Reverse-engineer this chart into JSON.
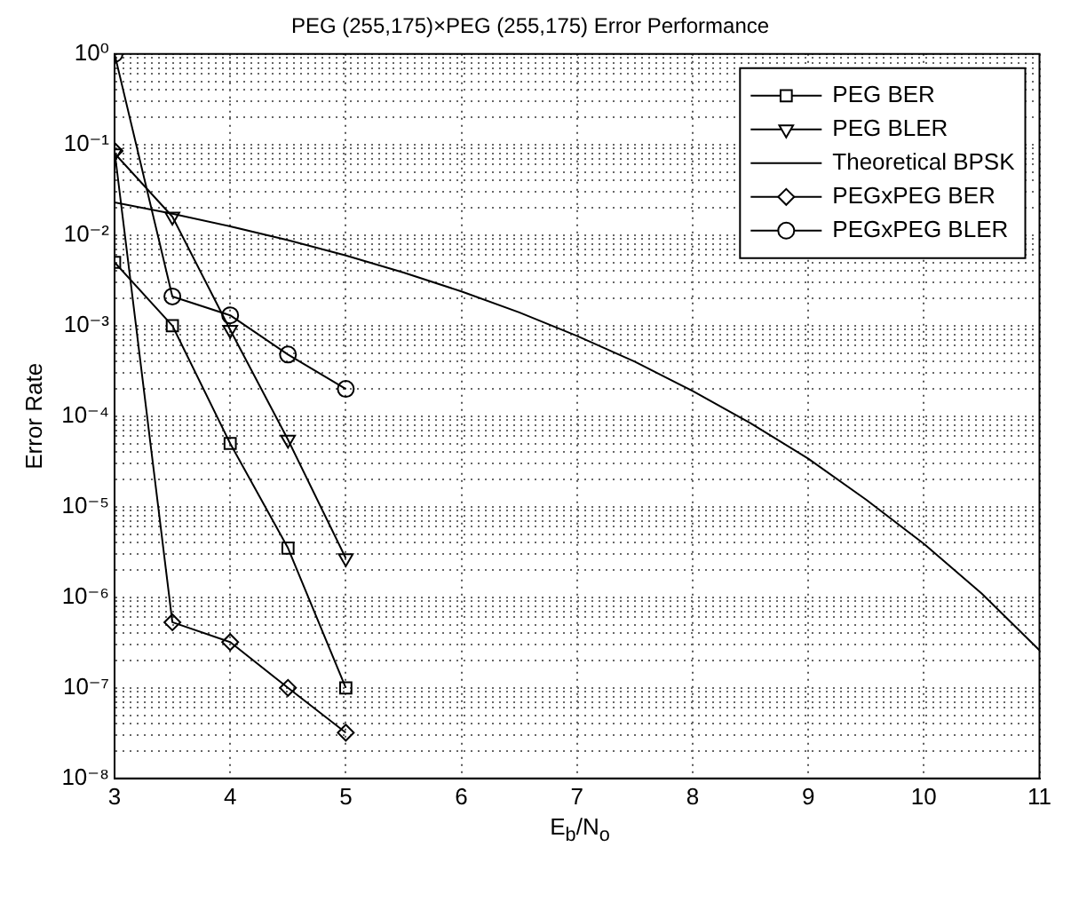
{
  "chart_data": {
    "type": "line",
    "title": "PEG (255,175)×PEG (255,175) Error Performance",
    "xlabel": "E$_{b}$/N$_{o}$",
    "ylabel": "Error Rate",
    "log": "y",
    "grid": true,
    "legend": "top right",
    "xlim": [
      3,
      11
    ],
    "xticks": [
      3,
      4,
      5,
      6,
      7,
      8,
      9,
      10,
      11
    ],
    "ylim": [
      1e-08,
      1
    ],
    "yticks": [
      {
        "value": 1e-08,
        "label": "10⁻⁸"
      },
      {
        "value": 2e-08,
        "label": null
      },
      {
        "value": 3e-08,
        "label": null
      },
      {
        "value": 4e-08,
        "label": null
      },
      {
        "value": 5e-08,
        "label": null
      },
      {
        "value": 6e-08,
        "label": null
      },
      {
        "value": 7e-08,
        "label": null
      },
      {
        "value": 8e-08,
        "label": null
      },
      {
        "value": 9e-08,
        "label": null
      },
      {
        "value": 1e-07,
        "label": "10⁻⁷"
      },
      {
        "value": 2e-07,
        "label": null
      },
      {
        "value": 3e-07,
        "label": null
      },
      {
        "value": 4e-07,
        "label": null
      },
      {
        "value": 5e-07,
        "label": null
      },
      {
        "value": 6e-07,
        "label": null
      },
      {
        "value": 7e-07,
        "label": null
      },
      {
        "value": 8e-07,
        "label": null
      },
      {
        "value": 9e-07,
        "label": null
      },
      {
        "value": 1e-06,
        "label": "10⁻⁶"
      },
      {
        "value": 2e-06,
        "label": null
      },
      {
        "value": 3e-06,
        "label": null
      },
      {
        "value": 4e-06,
        "label": null
      },
      {
        "value": 5e-06,
        "label": null
      },
      {
        "value": 6e-06,
        "label": null
      },
      {
        "value": 7e-06,
        "label": null
      },
      {
        "value": 8e-06,
        "label": null
      },
      {
        "value": 9e-06,
        "label": null
      },
      {
        "value": 1e-05,
        "label": "10⁻⁵"
      },
      {
        "value": 2e-05,
        "label": null
      },
      {
        "value": 3e-05,
        "label": null
      },
      {
        "value": 4e-05,
        "label": null
      },
      {
        "value": 5e-05,
        "label": null
      },
      {
        "value": 6e-05,
        "label": null
      },
      {
        "value": 7e-05,
        "label": null
      },
      {
        "value": 8e-05,
        "label": null
      },
      {
        "value": 9e-05,
        "label": null
      },
      {
        "value": 0.0001,
        "label": "10⁻⁴"
      },
      {
        "value": 0.0002,
        "label": null
      },
      {
        "value": 0.0003,
        "label": null
      },
      {
        "value": 0.0004,
        "label": null
      },
      {
        "value": 0.0005,
        "label": null
      },
      {
        "value": 0.0006,
        "label": null
      },
      {
        "value": 0.0007,
        "label": null
      },
      {
        "value": 0.0008,
        "label": null
      },
      {
        "value": 0.0009,
        "label": null
      },
      {
        "value": 0.001,
        "label": "10⁻³"
      },
      {
        "value": 0.002,
        "label": null
      },
      {
        "value": 0.003,
        "label": null
      },
      {
        "value": 0.004,
        "label": null
      },
      {
        "value": 0.005,
        "label": null
      },
      {
        "value": 0.006,
        "label": null
      },
      {
        "value": 0.007,
        "label": null
      },
      {
        "value": 0.008,
        "label": null
      },
      {
        "value": 0.009,
        "label": null
      },
      {
        "value": 0.01,
        "label": "10⁻²"
      },
      {
        "value": 0.02,
        "label": null
      },
      {
        "value": 0.03,
        "label": null
      },
      {
        "value": 0.04,
        "label": null
      },
      {
        "value": 0.05,
        "label": null
      },
      {
        "value": 0.06,
        "label": null
      },
      {
        "value": 0.07,
        "label": null
      },
      {
        "value": 0.08,
        "label": null
      },
      {
        "value": 0.09,
        "label": null
      },
      {
        "value": 0.1,
        "label": "10⁻¹"
      },
      {
        "value": 0.2,
        "label": null
      },
      {
        "value": 0.3,
        "label": null
      },
      {
        "value": 0.4,
        "label": null
      },
      {
        "value": 0.5,
        "label": null
      },
      {
        "value": 0.6,
        "label": null
      },
      {
        "value": 0.7,
        "label": null
      },
      {
        "value": 0.8,
        "label": null
      },
      {
        "value": 0.9,
        "label": null
      },
      {
        "value": 1,
        "label": "10⁰"
      }
    ],
    "series": [
      {
        "name": "PEG BER",
        "color": "#000000",
        "marker": "square",
        "x": [
          3,
          3.5,
          4,
          4.5,
          5
        ],
        "values": [
          0.005,
          0.001,
          5e-05,
          3.5e-06,
          1e-07
        ]
      },
      {
        "name": "PEG BLER",
        "color": "#000000",
        "marker": "triangle",
        "x": [
          3,
          3.5,
          4,
          4.5,
          5
        ],
        "values": [
          0.08,
          0.016,
          0.0009,
          5.5e-05,
          2.7e-06
        ]
      },
      {
        "name": "Theoretical BPSK",
        "color": "#000000",
        "marker": "none",
        "x": [
          3,
          3.5,
          4,
          4.5,
          5,
          5.5,
          6,
          6.5,
          7,
          7.5,
          8,
          8.5,
          9,
          9.5,
          10,
          10.5,
          11
        ],
        "values": [
          0.0229,
          0.0172,
          0.0125,
          0.0088,
          0.00595,
          0.00386,
          0.00239,
          0.0014,
          0.00077,
          0.0004,
          0.00019,
          8.4e-05,
          3.4e-05,
          1.2e-05,
          3.9e-06,
          1.1e-06,
          2.6e-07
        ]
      },
      {
        "name": "PEGxPEG BER",
        "color": "#000000",
        "marker": "diamond",
        "x": [
          3,
          3.5,
          4,
          4.5,
          5
        ],
        "values": [
          0.085,
          5.3e-07,
          3.2e-07,
          1e-07,
          3.2e-08
        ]
      },
      {
        "name": "PEGxPEG BLER",
        "color": "#000000",
        "marker": "circle",
        "x": [
          3,
          3.5,
          4,
          4.5,
          5
        ],
        "values": [
          1,
          0.0021,
          0.0013,
          0.00048,
          0.0002
        ]
      }
    ]
  }
}
